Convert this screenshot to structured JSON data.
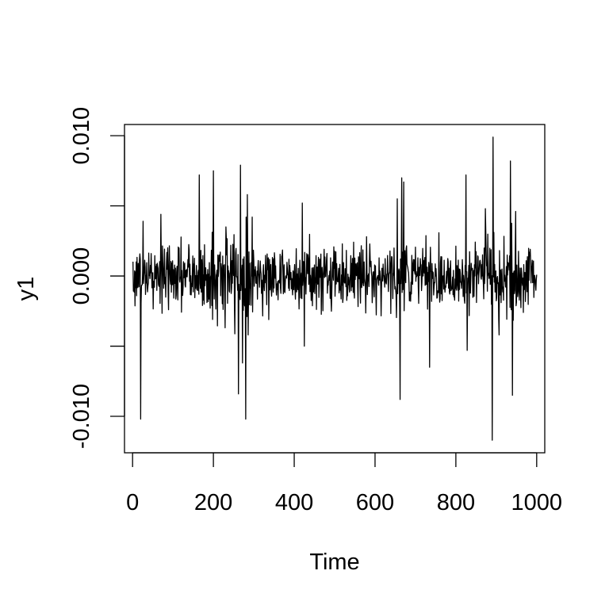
{
  "chart_data": {
    "type": "line",
    "title": "",
    "xlabel": "Time",
    "ylabel": "y1",
    "xlim": [
      -20,
      1020
    ],
    "ylim": [
      -0.0126,
      0.0108
    ],
    "x_ticks": [
      0,
      200,
      400,
      600,
      800,
      1000
    ],
    "x_tick_labels": [
      "0",
      "200",
      "400",
      "600",
      "800",
      "1000"
    ],
    "y_ticks": [
      -0.01,
      -0.005,
      0,
      0.005,
      0.01
    ],
    "y_tick_labels": [
      "-0.010",
      "",
      "0.000",
      "",
      "0.010"
    ],
    "n_points": 1000,
    "x_start": 1,
    "line_color": "#000000",
    "spikes": [
      {
        "x": 20,
        "y": -0.0102
      },
      {
        "x": 26,
        "y": 0.0039
      },
      {
        "x": 70,
        "y": 0.0044
      },
      {
        "x": 165,
        "y": 0.0072
      },
      {
        "x": 200,
        "y": 0.0075
      },
      {
        "x": 262,
        "y": -0.0084
      },
      {
        "x": 267,
        "y": 0.0079
      },
      {
        "x": 272,
        "y": -0.0062
      },
      {
        "x": 280,
        "y": -0.0102
      },
      {
        "x": 284,
        "y": 0.0058
      },
      {
        "x": 420,
        "y": 0.0052
      },
      {
        "x": 425,
        "y": -0.005
      },
      {
        "x": 655,
        "y": 0.0055
      },
      {
        "x": 662,
        "y": -0.0088
      },
      {
        "x": 666,
        "y": 0.007
      },
      {
        "x": 671,
        "y": 0.0067
      },
      {
        "x": 735,
        "y": -0.0065
      },
      {
        "x": 825,
        "y": 0.0072
      },
      {
        "x": 828,
        "y": -0.0053
      },
      {
        "x": 873,
        "y": 0.0048
      },
      {
        "x": 890,
        "y": -0.0117
      },
      {
        "x": 892,
        "y": 0.0099
      },
      {
        "x": 935,
        "y": 0.0082
      },
      {
        "x": 940,
        "y": -0.0085
      },
      {
        "x": 948,
        "y": 0.0046
      }
    ]
  }
}
